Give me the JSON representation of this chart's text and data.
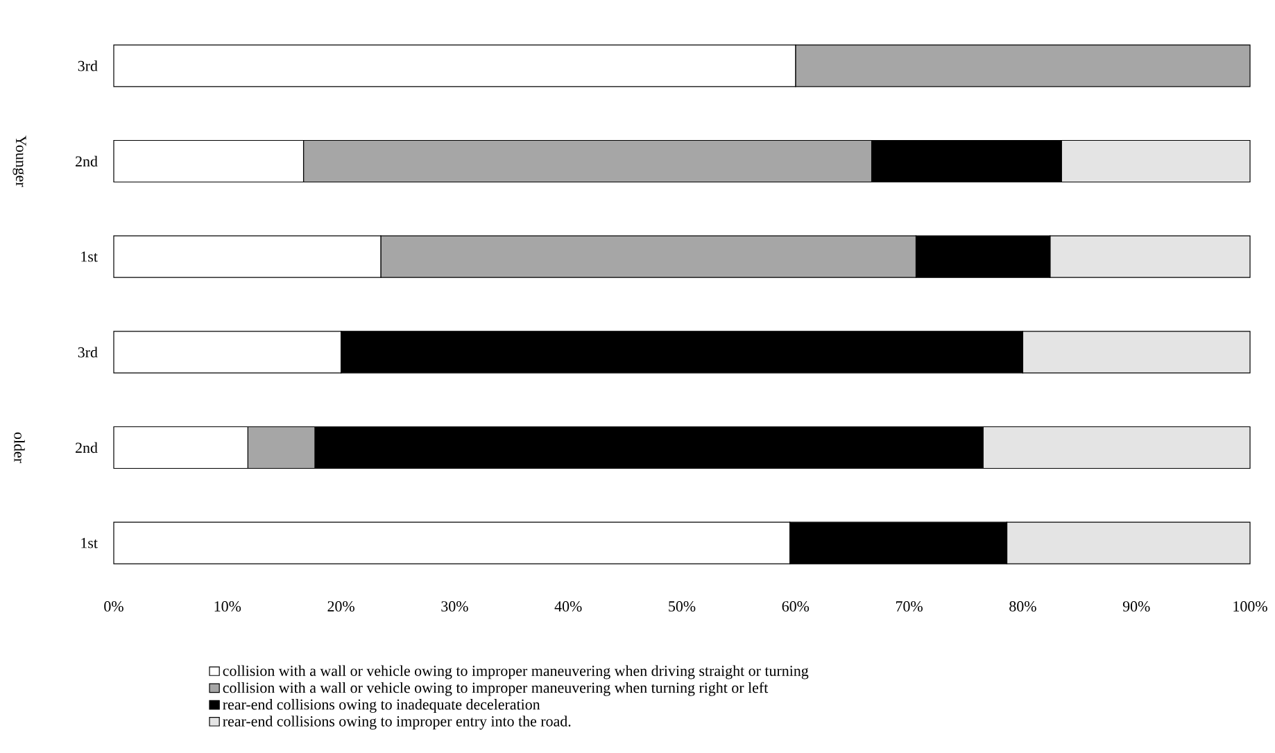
{
  "chart_data": {
    "type": "bar",
    "orientation": "horizontal",
    "stacked": true,
    "categories": [
      "3rd",
      "2nd",
      "1st",
      "3rd",
      "2nd",
      "1st"
    ],
    "series": [
      {
        "name": "collision with a wall or vehicle owing to improper maneuvering when driving straight or turning",
        "color": "#ffffff",
        "values": [
          60,
          16.7,
          23.5,
          20,
          11.8,
          59.5
        ]
      },
      {
        "name": "collision with a wall or vehicle owing to improper maneuvering when turning right or left",
        "color": "#a6a6a6",
        "values": [
          40,
          50,
          47.1,
          0,
          5.9,
          0
        ]
      },
      {
        "name": "rear-end collisions owing to inadequate deceleration",
        "color": "#000000",
        "values": [
          0,
          16.7,
          11.8,
          60,
          58.8,
          19.1
        ]
      },
      {
        "name": "rear-end collisions owing to improper entry into the road.",
        "color": "#e4e4e4",
        "values": [
          0,
          16.6,
          17.6,
          20,
          23.5,
          21.4
        ]
      }
    ],
    "xlim": [
      0,
      100
    ],
    "xticks": [
      {
        "value": 0,
        "label": "0%"
      },
      {
        "value": 10,
        "label": "10%"
      },
      {
        "value": 20,
        "label": "20%"
      },
      {
        "value": 30,
        "label": "30%"
      },
      {
        "value": 40,
        "label": "40%"
      },
      {
        "value": 50,
        "label": "50%"
      },
      {
        "value": 60,
        "label": "60%"
      },
      {
        "value": 70,
        "label": "70%"
      },
      {
        "value": 80,
        "label": "80%"
      },
      {
        "value": 90,
        "label": "90%"
      },
      {
        "value": 100,
        "label": "100%"
      }
    ],
    "annotations": [
      "Younger",
      "older"
    ],
    "legend": "bottom",
    "grid": false
  }
}
